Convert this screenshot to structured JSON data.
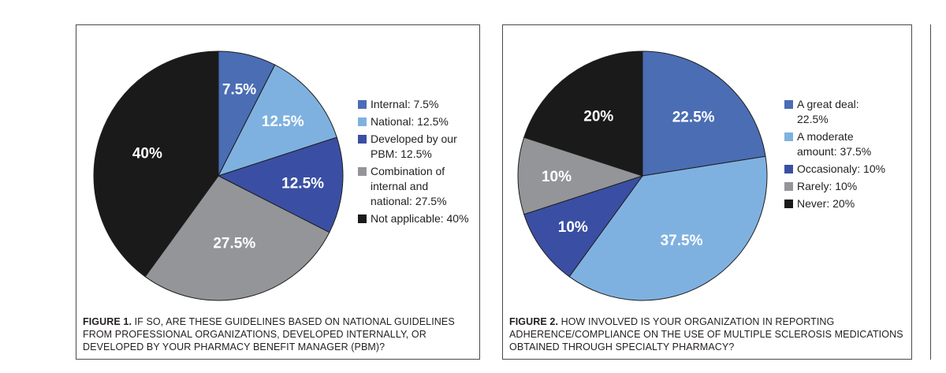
{
  "chart_data": [
    {
      "type": "pie",
      "caption_label": "FIGURE 1.",
      "caption_text": "IF SO, ARE THESE GUIDELINES BASED ON NATIONAL GUIDELINES FROM PROFESSIONAL ORGANIZATIONS, DEVELOPED INTERNALLY, OR DEVELOPED BY YOUR PHARMACY BENEFIT MANAGER (PBM)?",
      "slices": [
        {
          "legend": "Internal: 7.5%",
          "label": "7.5%",
          "value": 7.5,
          "color": "#4a6db4"
        },
        {
          "legend": "National: 12.5%",
          "label": "12.5%",
          "value": 12.5,
          "color": "#7fb1e0"
        },
        {
          "legend": "Developed by our PBM: 12.5%",
          "label": "12.5%",
          "value": 12.5,
          "color": "#3a4fa3"
        },
        {
          "legend": "Combination of internal and national: 27.5%",
          "label": "27.5%",
          "value": 27.5,
          "color": "#949599"
        },
        {
          "legend": "Not applicable: 40%",
          "label": "40%",
          "value": 40,
          "color": "#1b1a1b"
        }
      ]
    },
    {
      "type": "pie",
      "caption_label": "FIGURE 2.",
      "caption_text": "HOW INVOLVED IS YOUR ORGANIZATION IN REPORTING ADHERENCE/COMPLIANCE ON THE USE OF MULTIPLE SCLEROSIS MEDICATIONS OBTAINED THROUGH SPECIALTY PHARMACY?",
      "slices": [
        {
          "legend": "A great deal: 22.5%",
          "label": "22.5%",
          "value": 22.5,
          "color": "#4a6db4"
        },
        {
          "legend": "A moderate amount: 37.5%",
          "label": "37.5%",
          "value": 37.5,
          "color": "#7fb1e0"
        },
        {
          "legend": "Occasionaly: 10%",
          "label": "10%",
          "value": 10,
          "color": "#3a4fa3"
        },
        {
          "legend": "Rarely: 10%",
          "label": "10%",
          "value": 10,
          "color": "#949599"
        },
        {
          "legend": "Never: 20%",
          "label": "20%",
          "value": 20,
          "color": "#1b1a1b"
        }
      ]
    }
  ]
}
